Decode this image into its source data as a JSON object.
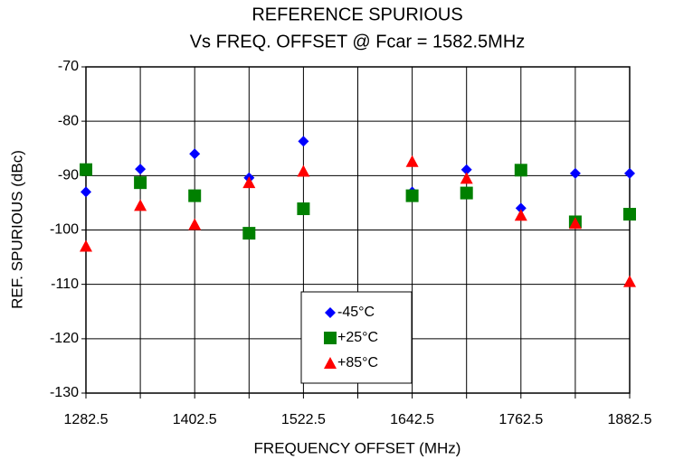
{
  "chart_data": {
    "type": "scatter",
    "title": "REFERENCE SPURIOUS",
    "subtitle": "Vs FREQ. OFFSET @ Fcar = 1582.5MHz",
    "x_label": "FREQUENCY OFFSET (MHz)",
    "y_label": "REF. SPURIOUS (dBc)",
    "x": [
      1282.5,
      1342.5,
      1402.5,
      1462.5,
      1522.5,
      1642.5,
      1702.5,
      1762.5,
      1822.5,
      1882.5
    ],
    "series": [
      {
        "name": "-45°C",
        "color": "#0000ff",
        "marker": "diamond",
        "values": [
          -93,
          -88.8,
          -86,
          -90.4,
          -83.7,
          -93,
          -88.9,
          -96,
          -89.6,
          -89.6
        ]
      },
      {
        "name": "+25°C",
        "color": "#008000",
        "marker": "square",
        "values": [
          -88.9,
          -91.3,
          -93.7,
          -100.6,
          -96.1,
          -93.7,
          -93.2,
          -89,
          -98.5,
          -97.1
        ]
      },
      {
        "name": "+85°C",
        "color": "#ff0000",
        "marker": "triangle",
        "values": [
          -103,
          -95.5,
          -99,
          -91.3,
          -89.2,
          -87.4,
          -90.5,
          -97.3,
          -98.8,
          -109.5
        ]
      }
    ],
    "xlim": [
      1282.5,
      1882.5
    ],
    "xticks": [
      1282.5,
      1402.5,
      1522.5,
      1642.5,
      1762.5,
      1882.5
    ],
    "x_grid": [
      1342.5,
      1462.5,
      1582.5,
      1702.5,
      1822.5
    ],
    "ylim": [
      -130,
      -70
    ],
    "yticks": [
      -130,
      -120,
      -110,
      -100,
      -90,
      -80,
      -70
    ],
    "grid": true,
    "legend": "bottom-center"
  }
}
